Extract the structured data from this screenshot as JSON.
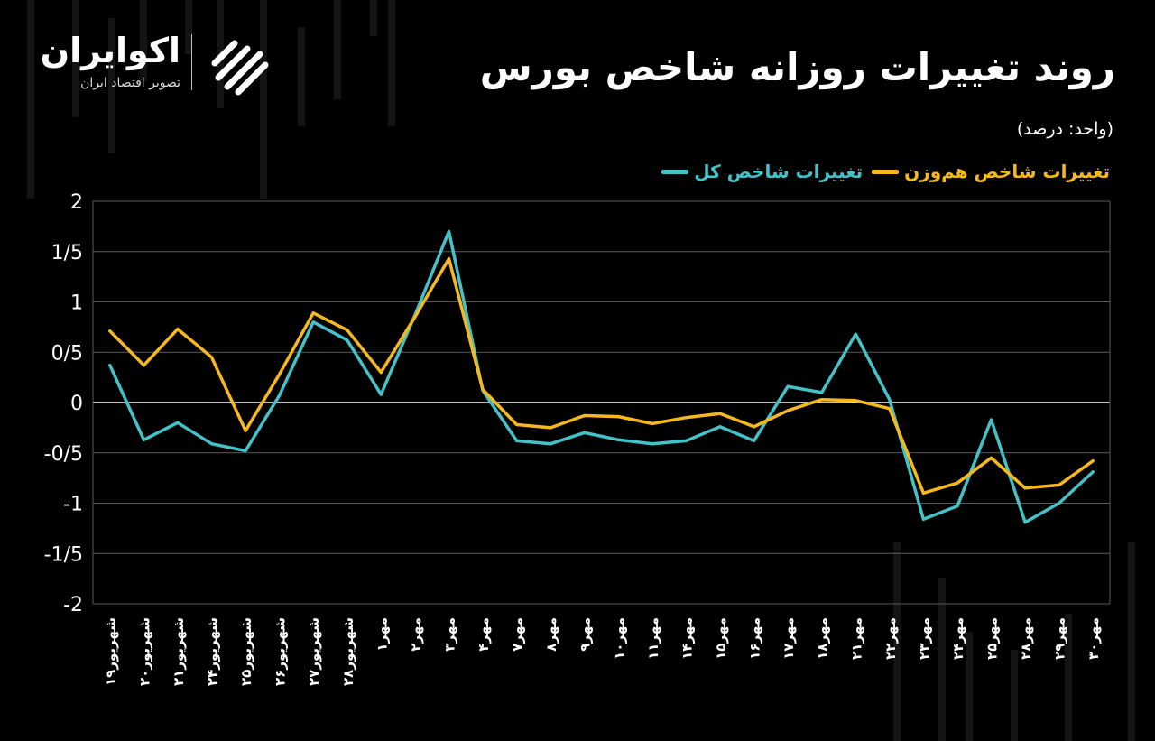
{
  "header": {
    "title": "روند تغییرات روزانه شاخص بورس",
    "unit": "(واحد: درصد)"
  },
  "brand": {
    "name": "اکوایران",
    "tagline": "تصویر اقتصاد ایران",
    "icon": "ecoiran-logo-icon"
  },
  "colors": {
    "background": "#000000",
    "total_index": "#44c2c8",
    "equal_weight_index": "#f5b91e",
    "grid": "#5a5a5a",
    "zero_line": "#ffffff"
  },
  "chart_data": {
    "type": "line",
    "title": "روند تغییرات روزانه شاخص بورس",
    "ylim": [
      -2,
      2
    ],
    "yticks": [
      2,
      1.5,
      1,
      0.5,
      0,
      -0.5,
      -1,
      -1.5,
      -2
    ],
    "ytick_labels": [
      "2",
      "1/5",
      "1",
      "0/5",
      "0",
      "-0/5",
      "-1",
      "-1/5",
      "-2"
    ],
    "grid": true,
    "legend_position": "top-right",
    "categories": [
      "شهریور۱۹",
      "شهریور۲۰",
      "شهریور۲۱",
      "شهریور۲۴",
      "شهریور۲۵",
      "شهریور۲۶",
      "شهریور۲۷",
      "شهریور۲۸",
      "مهر۱",
      "مهر۲",
      "مهر۳",
      "مهر۴",
      "مهر۷",
      "مهر۸",
      "مهر۹",
      "مهر۱۰",
      "مهر۱۱",
      "مهر۱۴",
      "مهر۱۵",
      "مهر۱۶",
      "مهر۱۷",
      "مهر۱۸",
      "مهر۲۱",
      "مهر۲۲",
      "مهر۲۳",
      "مهر۲۴",
      "مهر۲۵",
      "مهر۲۸",
      "مهر۲۹",
      "مهر۳۰"
    ],
    "series": [
      {
        "name": "تغییرات شاخص کل",
        "color": "#44c2c8",
        "values": [
          0.37,
          -0.37,
          -0.2,
          -0.41,
          -0.48,
          0.07,
          0.8,
          0.62,
          0.08,
          0.87,
          1.7,
          0.12,
          -0.38,
          -0.41,
          -0.3,
          -0.37,
          -0.41,
          -0.38,
          -0.24,
          -0.38,
          0.16,
          0.1,
          0.68,
          0.03,
          -1.16,
          -1.03,
          -0.17,
          -1.19,
          -1.0,
          -0.69
        ]
      },
      {
        "name": "تغییرات شاخص هم‌وزن",
        "color": "#f5b91e",
        "values": [
          0.71,
          0.37,
          0.73,
          0.45,
          -0.28,
          0.28,
          0.89,
          0.72,
          0.3,
          0.85,
          1.43,
          0.13,
          -0.22,
          -0.25,
          -0.13,
          -0.14,
          -0.21,
          -0.15,
          -0.11,
          -0.24,
          -0.08,
          0.03,
          0.02,
          -0.06,
          -0.9,
          -0.8,
          -0.55,
          -0.85,
          -0.82,
          -0.58
        ]
      }
    ]
  }
}
